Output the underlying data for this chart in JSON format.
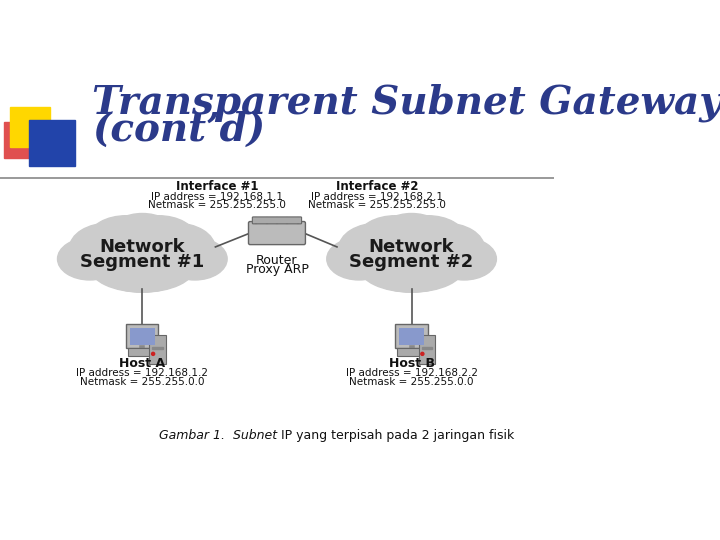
{
  "title_line1": "Transparent Subnet Gateway",
  "title_line2": "(cont’d)",
  "title_color": "#2B3A8A",
  "bg_color": "#FFFFFF",
  "interface1_label": "Interface #1",
  "interface1_ip": "IP address = 192.168.1.1",
  "interface1_mask": "Netmask = 255.255.255.0",
  "interface2_label": "Interface #2",
  "interface2_ip": "IP address = 192.168.2.1",
  "interface2_mask": "Netmask = 255.255.255.0",
  "router_label1": "Router",
  "router_label2": "Proxy ARP",
  "net_seg1_line1": "Network",
  "net_seg1_line2": "Segment #1",
  "net_seg2_line1": "Network",
  "net_seg2_line2": "Segment #2",
  "hostA_label": "Host A",
  "hostA_ip": "IP address = 192.168.1.2",
  "hostA_mask": "Netmask = 255.255.0.0",
  "hostB_label": "Host B",
  "hostB_ip": "IP address = 192.168.2.2",
  "hostB_mask": "Netmask = 255.255.0.0",
  "caption_italic": "Gambar 1.  Subnet",
  "caption_normal": " IP yang terpisah pada 2 jaringan fisik",
  "deco_yellow": "#FFD700",
  "deco_red": "#E05050",
  "deco_blue": "#2244AA",
  "line_color": "#444444",
  "cloud_color": "#CCCCCC",
  "text_dark": "#222222",
  "text_bold_color": "#000000"
}
